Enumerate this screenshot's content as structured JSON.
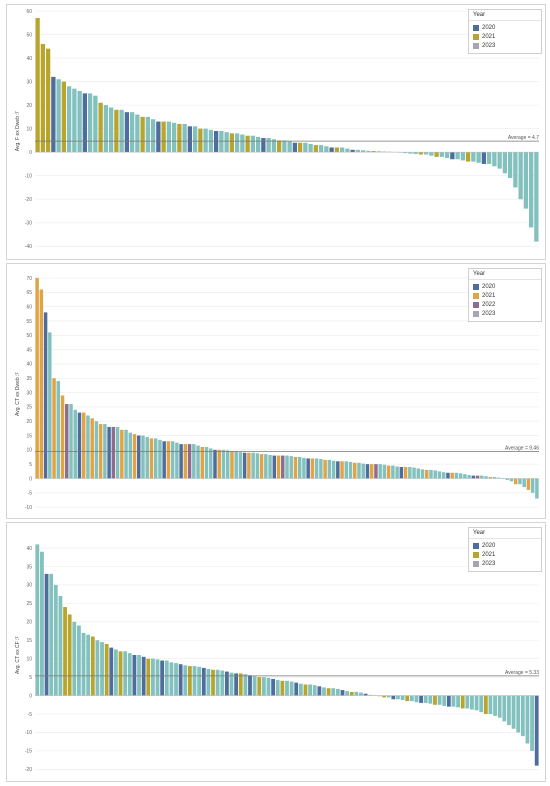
{
  "colors": {
    "2020": "#4e6c9c",
    "2021": "#b8a52e",
    "2021b": "#e0a445",
    "2022": "#8c6d8f",
    "2023": "#82c1be",
    "2023_legend": "#a7a5b3",
    "average_line": "#777777",
    "gridline": "#ececec"
  },
  "chart_data": [
    {
      "type": "bar",
      "ylabel": "Avg. F ex Dweb ℱ",
      "ylim": [
        -42,
        60
      ],
      "yticks": [
        -40,
        -30,
        -20,
        -10,
        0,
        10,
        20,
        30,
        40,
        50,
        60
      ],
      "average": 4.7,
      "average_label": "Average = 4.7",
      "legend": {
        "title": "Year",
        "items": [
          {
            "label": "2020",
            "color_key": "2020"
          },
          {
            "label": "2021",
            "color_key": "2021"
          },
          {
            "label": "2023",
            "color_key": "2023_legend"
          }
        ]
      },
      "series": [
        {
          "name": "2020",
          "color_key": "2020",
          "values": [
            32,
            25,
            17,
            13,
            11,
            9,
            6,
            4,
            2,
            1,
            -3,
            -5
          ]
        },
        {
          "name": "2021",
          "color_key": "2021",
          "values": [
            57,
            46,
            44,
            30,
            21,
            18,
            15,
            13,
            12,
            10,
            8,
            7,
            5,
            4,
            3,
            2,
            0.5,
            -1,
            -2,
            -4
          ]
        },
        {
          "name": "2023",
          "color_key": "2023",
          "values": [
            31,
            28,
            27,
            26,
            25,
            24,
            20,
            19,
            18,
            17,
            16,
            15,
            14,
            13,
            12.5,
            12,
            11,
            10,
            9.5,
            9,
            8.5,
            8,
            7.5,
            7,
            6.5,
            6,
            5.5,
            5,
            4.5,
            4,
            3.5,
            3,
            2.5,
            2,
            1.5,
            1,
            0.8,
            0.6,
            0.4,
            0.3,
            0.2,
            0.1,
            -0.2,
            -0.4,
            -0.6,
            -0.8,
            -1,
            -1.5,
            -2,
            -2.5,
            -3,
            -3.5,
            -4,
            -4.5,
            -5,
            -6,
            -7,
            -9,
            -11,
            -15,
            -20,
            -24,
            -32,
            -38
          ]
        }
      ]
    },
    {
      "type": "bar",
      "ylabel": "Avg. CT ex Dweb ℱ",
      "ylim": [
        -11,
        70
      ],
      "yticks": [
        -10,
        -5,
        0,
        5,
        10,
        15,
        20,
        25,
        30,
        35,
        40,
        45,
        50,
        55,
        60,
        65,
        70
      ],
      "average": 9.46,
      "average_label": "Average = 9.46",
      "legend": {
        "title": "Year",
        "items": [
          {
            "label": "2020",
            "color_key": "2020"
          },
          {
            "label": "2021",
            "color_key": "2021b"
          },
          {
            "label": "2022",
            "color_key": "2022"
          },
          {
            "label": "2023",
            "color_key": "2023_legend"
          }
        ]
      },
      "series": [
        {
          "name": "2020",
          "color_key": "2020",
          "values": [
            58,
            23,
            18,
            15,
            13,
            12,
            10,
            9,
            8,
            7,
            6,
            5,
            4,
            2,
            1
          ]
        },
        {
          "name": "2021",
          "color_key": "2021b",
          "values": [
            70,
            66,
            35,
            29,
            23,
            21,
            19,
            17,
            15.5,
            14,
            13,
            12,
            11,
            10,
            9.5,
            9,
            8.5,
            8,
            7.5,
            7,
            6.5,
            6,
            5.5,
            5,
            4.5,
            4,
            3,
            2,
            0.5,
            -2,
            -4
          ]
        },
        {
          "name": "2022",
          "color_key": "2022",
          "values": [
            26,
            18,
            12,
            8,
            5,
            1
          ]
        },
        {
          "name": "2023",
          "color_key": "2023",
          "values": [
            51,
            34,
            26,
            24,
            22,
            20,
            19,
            18,
            17,
            16,
            15,
            14.5,
            14,
            13.5,
            13,
            12.5,
            12,
            11.5,
            11,
            10.5,
            10,
            9.8,
            9.5,
            9.2,
            9,
            8.8,
            8.5,
            8.2,
            8,
            7.8,
            7.5,
            7.2,
            7,
            6.8,
            6.5,
            6.2,
            6,
            5.8,
            5.5,
            5.2,
            5,
            4.8,
            4.5,
            4.2,
            4,
            3.8,
            3.5,
            3.2,
            3,
            2.8,
            2.5,
            2.2,
            2,
            1.8,
            1.5,
            1.2,
            1,
            0.8,
            0.5,
            0.3,
            -0.2,
            -0.5,
            -1,
            -2,
            -3,
            -5,
            -7
          ]
        }
      ]
    },
    {
      "type": "bar",
      "ylabel": "Avg. CT ex CF ℱ",
      "ylim": [
        -21,
        43
      ],
      "yticks": [
        -20,
        -15,
        -10,
        -5,
        0,
        5,
        10,
        15,
        20,
        25,
        30,
        35,
        40
      ],
      "average": 5.33,
      "average_label": "Average = 5.33",
      "legend": {
        "title": "Year",
        "items": [
          {
            "label": "2020",
            "color_key": "2020"
          },
          {
            "label": "2021",
            "color_key": "2021"
          },
          {
            "label": "2023",
            "color_key": "2023_legend"
          }
        ]
      },
      "series": [
        {
          "name": "2020",
          "color_key": "2020",
          "values": [
            33,
            13,
            11,
            10.5,
            9.5,
            8.5,
            7.5,
            6.5,
            6,
            5.5,
            4.5,
            3.5,
            2.5,
            1.5,
            0.5,
            -1,
            -2,
            -3,
            -19
          ]
        },
        {
          "name": "2021",
          "color_key": "2021",
          "values": [
            24,
            22,
            16,
            14,
            12,
            10,
            8,
            7,
            6,
            5,
            4,
            3,
            2,
            1,
            -0.5,
            -1.5,
            -2.5,
            -3.5,
            -5
          ]
        },
        {
          "name": "2023",
          "color_key": "2023",
          "values": [
            41,
            39,
            33,
            30,
            27,
            20,
            19,
            17,
            16.5,
            15,
            14.5,
            12.5,
            12,
            11.5,
            11,
            10,
            9.8,
            9.5,
            9,
            8.8,
            8.2,
            8,
            7.8,
            7.2,
            7,
            6.8,
            6.2,
            5.8,
            5.2,
            5,
            4.8,
            4.2,
            4,
            3.8,
            3.2,
            3,
            2.8,
            2.2,
            2,
            1.8,
            1.2,
            1,
            0.8,
            0.2,
            0.1,
            -0.2,
            -0.5,
            -1,
            -1.2,
            -1.5,
            -1.8,
            -2,
            -2.2,
            -2.5,
            -2.8,
            -3,
            -3.2,
            -3.5,
            -3.8,
            -4,
            -4.5,
            -5,
            -5.5,
            -6,
            -7,
            -8,
            -9,
            -10,
            -11,
            -13,
            -15
          ]
        }
      ]
    }
  ]
}
